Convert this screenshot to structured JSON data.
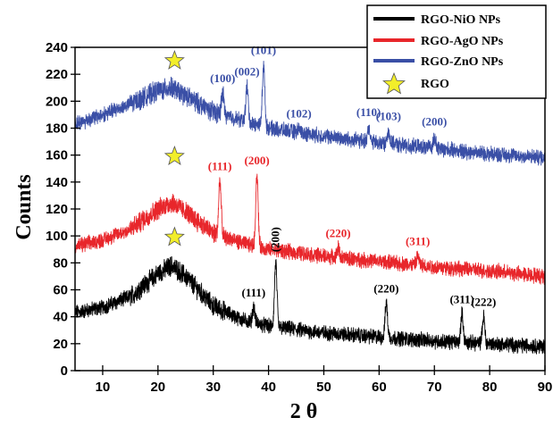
{
  "chart_data": {
    "type": "line",
    "xlabel": "2 θ",
    "ylabel": "Counts",
    "xlim": [
      5,
      90
    ],
    "ylim": [
      0,
      240
    ],
    "x_ticks": [
      10,
      20,
      30,
      40,
      50,
      60,
      70,
      80,
      90
    ],
    "y_ticks": [
      0,
      20,
      40,
      60,
      80,
      100,
      120,
      140,
      160,
      180,
      200,
      220,
      240
    ],
    "grid": false,
    "legend_position": "top-right",
    "series": [
      {
        "name": "RGO-NiO NPs",
        "color": "#000000",
        "profile": [
          [
            5,
            43
          ],
          [
            10,
            47
          ],
          [
            15,
            55
          ],
          [
            20,
            72
          ],
          [
            22.5,
            78
          ],
          [
            25,
            70
          ],
          [
            30,
            48
          ],
          [
            35,
            38
          ],
          [
            40,
            33
          ],
          [
            50,
            28
          ],
          [
            60,
            25
          ],
          [
            70,
            22
          ],
          [
            80,
            20
          ],
          [
            90,
            18
          ]
        ],
        "peaks": [
          {
            "x": 37.3,
            "y": 53,
            "label": "(111)"
          },
          {
            "x": 41.3,
            "y": 86,
            "label": "(200)"
          },
          {
            "x": 61.3,
            "y": 56,
            "label": "(220)"
          },
          {
            "x": 75.0,
            "y": 48,
            "label": "(311)"
          },
          {
            "x": 78.9,
            "y": 46,
            "label": "(222)"
          }
        ]
      },
      {
        "name": "RGO-AgO NPs",
        "color": "#e8262b",
        "profile": [
          [
            5,
            92
          ],
          [
            10,
            97
          ],
          [
            15,
            105
          ],
          [
            20,
            120
          ],
          [
            22.5,
            125
          ],
          [
            25,
            118
          ],
          [
            30,
            102
          ],
          [
            35,
            95
          ],
          [
            40,
            90
          ],
          [
            50,
            85
          ],
          [
            60,
            81
          ],
          [
            70,
            77
          ],
          [
            80,
            74
          ],
          [
            90,
            70
          ]
        ],
        "peaks": [
          {
            "x": 31.2,
            "y": 147,
            "label": "(111)"
          },
          {
            "x": 37.9,
            "y": 151,
            "label": "(200)"
          },
          {
            "x": 52.6,
            "y": 97,
            "label": "(220)"
          },
          {
            "x": 67.0,
            "y": 91,
            "label": "(311)"
          }
        ]
      },
      {
        "name": "RGO-ZnO NPs",
        "color": "#3a4fa6",
        "profile": [
          [
            5,
            183
          ],
          [
            10,
            190
          ],
          [
            15,
            198
          ],
          [
            20,
            208
          ],
          [
            22.5,
            210
          ],
          [
            25,
            204
          ],
          [
            30,
            192
          ],
          [
            35,
            186
          ],
          [
            40,
            180
          ],
          [
            50,
            174
          ],
          [
            60,
            169
          ],
          [
            70,
            165
          ],
          [
            80,
            161
          ],
          [
            90,
            158
          ]
        ],
        "peaks": [
          {
            "x": 31.7,
            "y": 212,
            "label": "(100)"
          },
          {
            "x": 36.1,
            "y": 217,
            "label": "(002)"
          },
          {
            "x": 39.1,
            "y": 233,
            "label": "(101)"
          },
          {
            "x": 45.5,
            "y": 186,
            "label": "(102)"
          },
          {
            "x": 58.1,
            "y": 187,
            "label": "(110)"
          },
          {
            "x": 61.7,
            "y": 184,
            "label": "(103)"
          },
          {
            "x": 70.0,
            "y": 180,
            "label": "(200)"
          }
        ]
      }
    ],
    "rgo_markers": [
      {
        "x": 23,
        "y": 99
      },
      {
        "x": 23,
        "y": 159
      },
      {
        "x": 23,
        "y": 230
      }
    ],
    "rgo_label": "RGO"
  }
}
